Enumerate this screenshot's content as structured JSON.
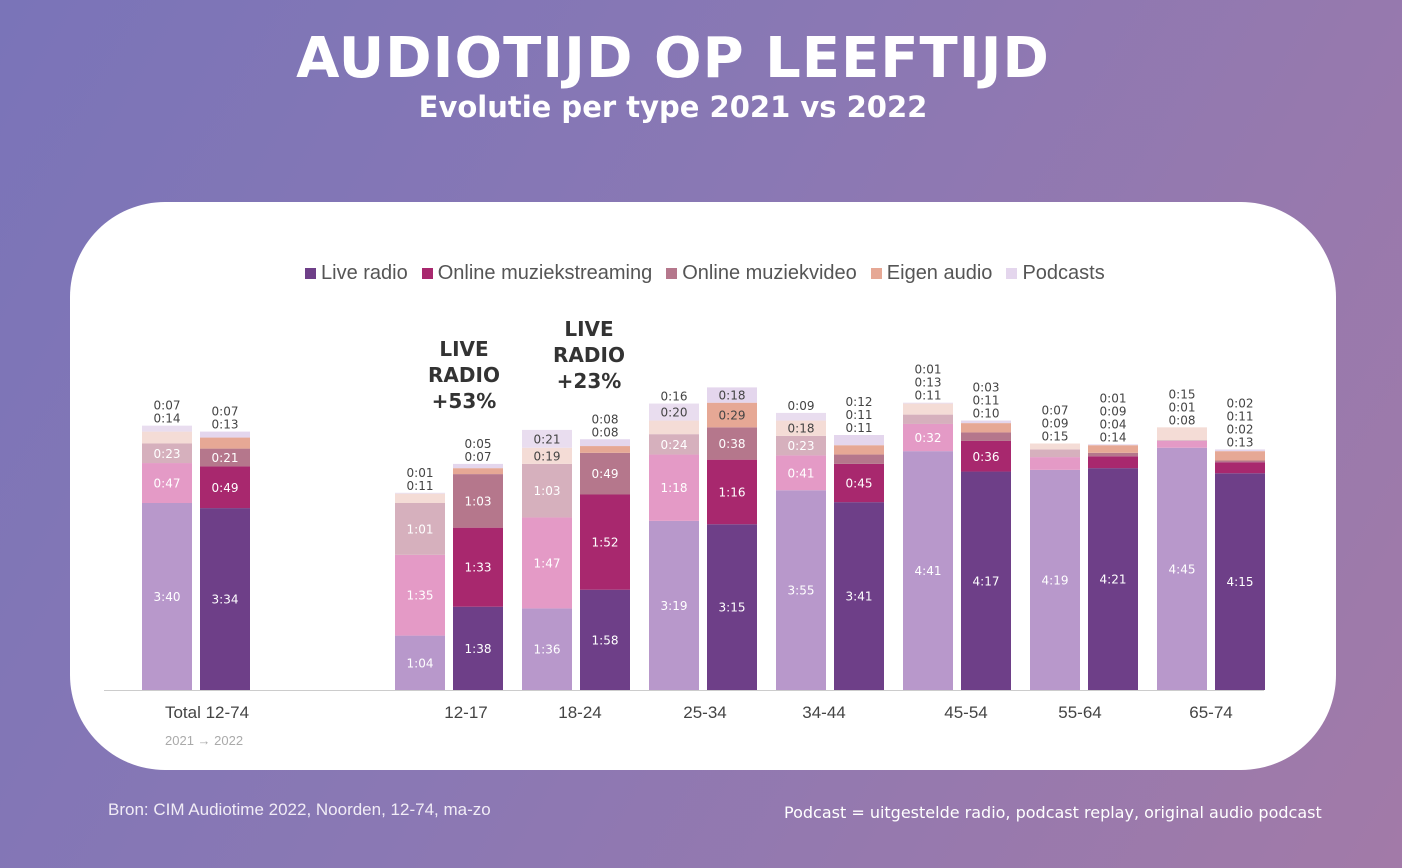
{
  "title": "AUDIOTIJD OP LEEFTIJD",
  "subtitle": "Evolutie per type 2021 vs 2022",
  "years_note": "2021 → 2022",
  "source": "Bron: CIM Audiotime 2022, Noorden, 12-74, ma-zo",
  "footnote": "Podcast = uitgestelde radio, podcast replay, original audio podcast",
  "annotations": [
    {
      "line1": "LIVE RADIO",
      "line2": "+53%"
    },
    {
      "line1": "LIVE RADIO",
      "line2": "+23%"
    }
  ],
  "chart_data": {
    "type": "bar",
    "stacked": true,
    "legend_position": "top",
    "grid": false,
    "categories": [
      "Total 12-74",
      "12-17",
      "18-24",
      "25-34",
      "34-44",
      "45-54",
      "55-64",
      "65-74"
    ],
    "years": [
      "2021",
      "2022"
    ],
    "series": [
      {
        "name": "Live radio",
        "color_2021": "#b898cb",
        "color_2022": "#6e3f88",
        "values_2021": [
          "3:40",
          "1:04",
          "1:36",
          "3:19",
          "3:55",
          "4:41",
          "4:19",
          "4:45"
        ],
        "values_2022": [
          "3:34",
          "1:38",
          "1:58",
          "3:15",
          "3:41",
          "4:17",
          "4:21",
          "4:15"
        ]
      },
      {
        "name": "Online muziekstreaming",
        "color_2021": "#e49ac6",
        "color_2022": "#a8286e",
        "values_2021": [
          "0:47",
          "1:35",
          "1:47",
          "1:18",
          "0:41",
          "0:32",
          "0:15",
          "0:08"
        ],
        "values_2022": [
          "0:49",
          "1:33",
          "1:52",
          "1:16",
          "0:45",
          "0:36",
          "0:14",
          "0:13"
        ]
      },
      {
        "name": "Online muziekvideo",
        "color_2021": "#d6b0bd",
        "color_2022": "#b5778c",
        "values_2021": [
          "0:23",
          "1:01",
          "1:03",
          "0:24",
          "0:23",
          "0:11",
          "0:09",
          "0:01"
        ],
        "values_2022": [
          "0:21",
          "1:03",
          "0:49",
          "0:38",
          "0:11",
          "0:10",
          "0:04",
          "0:02"
        ]
      },
      {
        "name": "Eigen audio",
        "color_2021": "#f4dcd6",
        "color_2022": "#e6a895",
        "values_2021": [
          "0:14",
          "0:11",
          "0:19",
          "0:16",
          "0:18",
          "0:13",
          "0:07",
          "0:15"
        ],
        "values_2022": [
          "0:13",
          "0:07",
          "0:08",
          "0:29",
          "0:11",
          "0:11",
          "0:09",
          "0:11"
        ]
      },
      {
        "name": "Podcasts",
        "color_2021": "#e9ddef",
        "color_2022": "#e4d6ed",
        "values_2021": [
          "0:07",
          "0:01",
          "0:21",
          "0:20",
          "0:09",
          "0:01",
          null,
          null
        ],
        "values_2022": [
          "0:07",
          "0:05",
          "0:08",
          "0:18",
          "0:12",
          "0:03",
          "0:01",
          "0:02"
        ]
      }
    ]
  }
}
